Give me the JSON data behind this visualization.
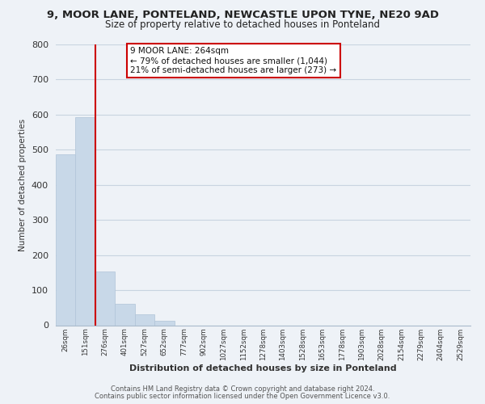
{
  "title": "9, MOOR LANE, PONTELAND, NEWCASTLE UPON TYNE, NE20 9AD",
  "subtitle": "Size of property relative to detached houses in Ponteland",
  "xlabel": "Distribution of detached houses by size in Ponteland",
  "ylabel": "Number of detached properties",
  "bar_labels": [
    "26sqm",
    "151sqm",
    "276sqm",
    "401sqm",
    "527sqm",
    "652sqm",
    "777sqm",
    "902sqm",
    "1027sqm",
    "1152sqm",
    "1278sqm",
    "1403sqm",
    "1528sqm",
    "1653sqm",
    "1778sqm",
    "1903sqm",
    "2028sqm",
    "2154sqm",
    "2279sqm",
    "2404sqm",
    "2529sqm"
  ],
  "bar_values": [
    487,
    593,
    152,
    62,
    32,
    12,
    0,
    0,
    0,
    0,
    0,
    0,
    0,
    0,
    0,
    0,
    0,
    0,
    0,
    0,
    0
  ],
  "bar_color": "#c8d8e8",
  "bar_edge_color": "#b0c4d8",
  "vline_color": "#cc0000",
  "ylim": [
    0,
    800
  ],
  "yticks": [
    0,
    100,
    200,
    300,
    400,
    500,
    600,
    700,
    800
  ],
  "annotation_title": "9 MOOR LANE: 264sqm",
  "annotation_line1": "← 79% of detached houses are smaller (1,044)",
  "annotation_line2": "21% of semi-detached houses are larger (273) →",
  "annotation_box_color": "#ffffff",
  "annotation_box_edge": "#cc0000",
  "footer_line1": "Contains HM Land Registry data © Crown copyright and database right 2024.",
  "footer_line2": "Contains public sector information licensed under the Open Government Licence v3.0.",
  "bg_color": "#eef2f7",
  "plot_bg_color": "#eef2f7",
  "grid_color": "#c8d4e0"
}
